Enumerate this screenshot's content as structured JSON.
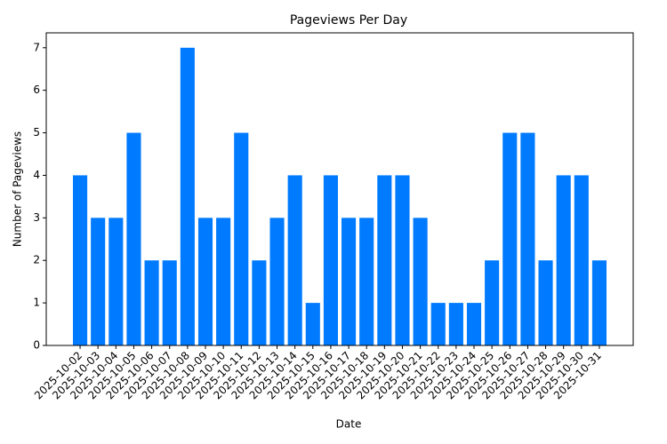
{
  "chart_data": {
    "type": "bar",
    "title": "Pageviews Per Day",
    "x_label": "Date",
    "y_label": "Number of Pageviews",
    "categories": [
      "2025-10-02",
      "2025-10-03",
      "2025-10-04",
      "2025-10-05",
      "2025-10-06",
      "2025-10-07",
      "2025-10-08",
      "2025-10-09",
      "2025-10-10",
      "2025-10-11",
      "2025-10-12",
      "2025-10-13",
      "2025-10-14",
      "2025-10-15",
      "2025-10-16",
      "2025-10-17",
      "2025-10-18",
      "2025-10-19",
      "2025-10-20",
      "2025-10-21",
      "2025-10-22",
      "2025-10-23",
      "2025-10-24",
      "2025-10-25",
      "2025-10-26",
      "2025-10-27",
      "2025-10-28",
      "2025-10-29",
      "2025-10-30",
      "2025-10-31"
    ],
    "values": [
      4,
      3,
      3,
      5,
      2,
      2,
      7,
      3,
      3,
      5,
      2,
      3,
      4,
      1,
      4,
      3,
      3,
      4,
      4,
      3,
      1,
      1,
      1,
      2,
      5,
      5,
      2,
      4,
      4,
      2
    ],
    "color": "#007bff",
    "ylim": [
      0,
      7.35
    ],
    "yticks": [
      0,
      1,
      2,
      3,
      4,
      5,
      6,
      7
    ]
  }
}
